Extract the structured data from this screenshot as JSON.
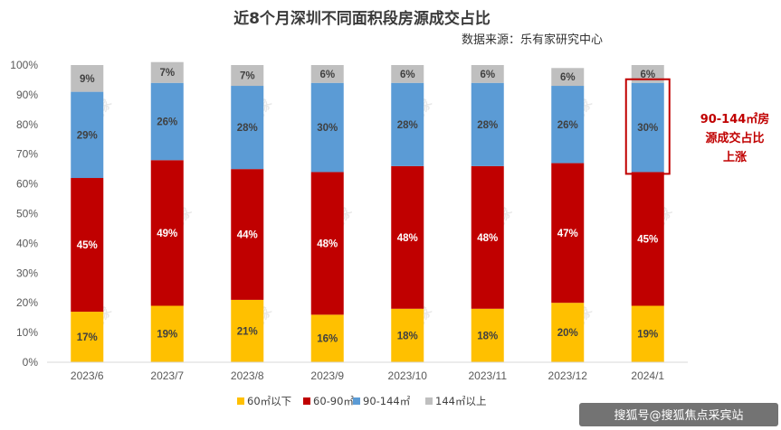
{
  "chart_data": {
    "type": "bar",
    "stacked": true,
    "title": "近8个月深圳不同面积段房源成交占比",
    "subtitle": "数据来源：乐有家研究中心",
    "categories": [
      "2023/6",
      "2023/7",
      "2023/8",
      "2023/9",
      "2023/10",
      "2023/11",
      "2023/12",
      "2024/1"
    ],
    "ylim": [
      0,
      100
    ],
    "yticks": [
      "0%",
      "10%",
      "20%",
      "30%",
      "40%",
      "50%",
      "60%",
      "70%",
      "80%",
      "90%",
      "100%"
    ],
    "grid": false,
    "legend_position": "bottom",
    "series": [
      {
        "name": "60㎡以下",
        "color": "#ffc000",
        "values": [
          17,
          19,
          21,
          16,
          18,
          18,
          20,
          19
        ],
        "labels": [
          "17%",
          "19%",
          "21%",
          "16%",
          "18%",
          "18%",
          "20%",
          "19%"
        ]
      },
      {
        "name": "60-90㎡",
        "color": "#c00000",
        "values": [
          45,
          49,
          44,
          48,
          48,
          48,
          47,
          45
        ],
        "labels": [
          "45%",
          "49%",
          "44%",
          "48%",
          "48%",
          "48%",
          "47%",
          "45%"
        ]
      },
      {
        "name": "90-144㎡",
        "color": "#5b9bd5",
        "values": [
          29,
          26,
          28,
          30,
          28,
          28,
          26,
          30
        ],
        "labels": [
          "29%",
          "26%",
          "28%",
          "30%",
          "28%",
          "28%",
          "26%",
          "30%"
        ]
      },
      {
        "name": "144㎡以上",
        "color": "#bfbfbf",
        "values": [
          9,
          7,
          7,
          6,
          6,
          6,
          6,
          6
        ],
        "labels": [
          "9%",
          "7%",
          "7%",
          "6%",
          "6%",
          "6%",
          "6%",
          "6%"
        ]
      }
    ],
    "annotation": {
      "lines": [
        "90-144㎡房",
        "源成交占比",
        "上涨"
      ],
      "color": "#c00000",
      "category_index": 7,
      "series_index": 2
    },
    "watermark": "乐有家"
  },
  "footer": {
    "text": "搜狐号@搜狐焦点采宾站"
  }
}
